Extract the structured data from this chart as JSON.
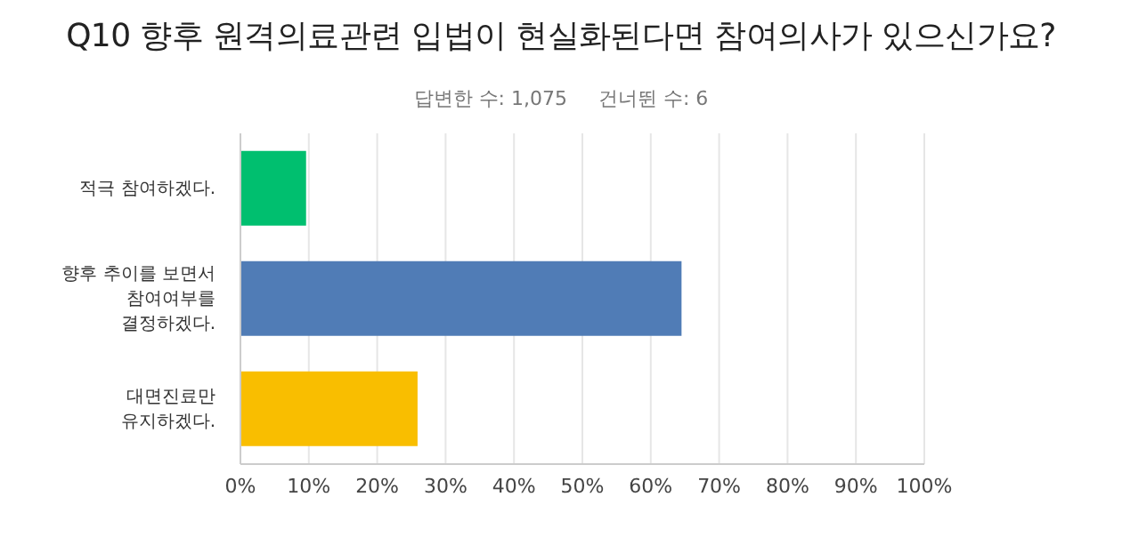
{
  "chart_data": {
    "type": "bar",
    "orientation": "horizontal",
    "title": "Q10 향후 원격의료관련 입법이 현실화된다면 참여의사가 있으신가요?",
    "subtitle": "답변한 수: 1,075     건너뛴 수: 6",
    "categories": [
      "적극 참여하겠다.",
      "향후 추이를 보면서 참여여부를 결정하겠다.",
      "대면진료만 유지하겠다."
    ],
    "values": [
      9.6,
      64.5,
      25.9
    ],
    "colors": [
      "#00bf6f",
      "#507cb6",
      "#f9be00"
    ],
    "xlim": [
      0,
      100
    ],
    "xticks": [
      {
        "value": 0,
        "label": "0%"
      },
      {
        "value": 10,
        "label": "10%"
      },
      {
        "value": 20,
        "label": "20%"
      },
      {
        "value": 30,
        "label": "30%"
      },
      {
        "value": 40,
        "label": "40%"
      },
      {
        "value": 50,
        "label": "50%"
      },
      {
        "value": 60,
        "label": "60%"
      },
      {
        "value": 70,
        "label": "70%"
      },
      {
        "value": 80,
        "label": "80%"
      },
      {
        "value": 90,
        "label": "90%"
      },
      {
        "value": 100,
        "label": "100%"
      }
    ],
    "grid": "x"
  }
}
